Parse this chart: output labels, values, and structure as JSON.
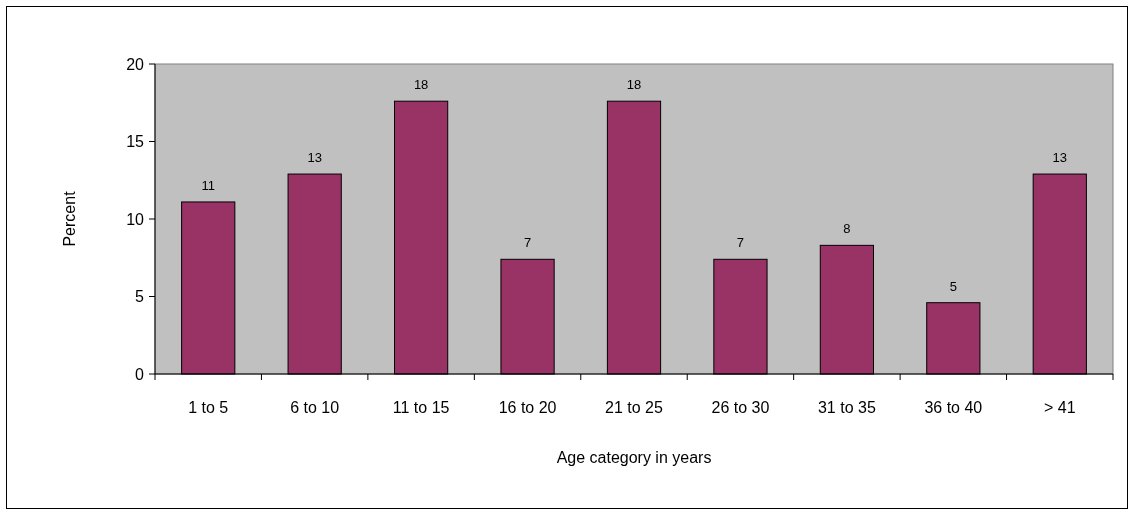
{
  "chart_data": {
    "type": "bar",
    "xlabel": "Age category in years",
    "ylabel": "Percent",
    "categories": [
      "1 to 5",
      "6 to 10",
      "11 to 15",
      "16 to 20",
      "21 to 25",
      "26 to 30",
      "31 to 35",
      "36 to 40",
      "> 41"
    ],
    "values": [
      11.1,
      12.9,
      17.6,
      7.4,
      17.6,
      7.4,
      8.3,
      4.6,
      12.9
    ],
    "value_labels": [
      "11",
      "13",
      "18",
      "7",
      "18",
      "7",
      "8",
      "5",
      "13"
    ],
    "color": "#993366",
    "ylim": [
      0,
      20
    ],
    "yticks": [
      0,
      5,
      10,
      15,
      20
    ]
  }
}
